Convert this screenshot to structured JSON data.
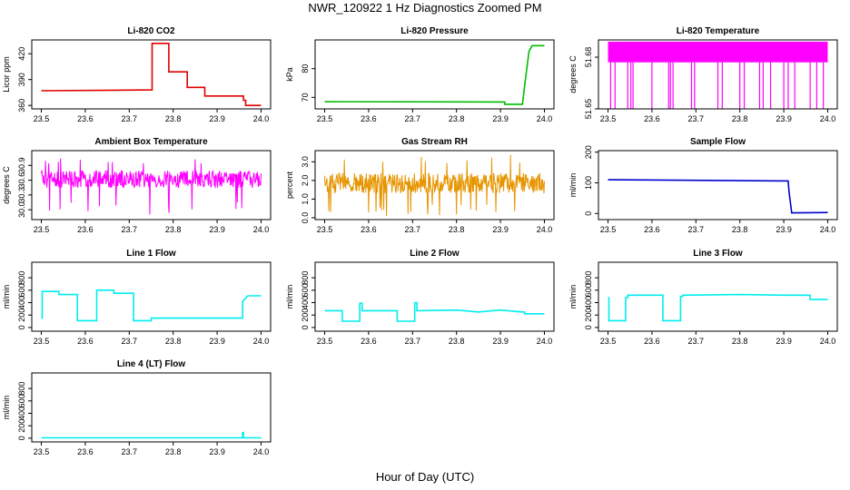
{
  "page": {
    "title": "NWR_120922  1 Hz Diagnostics Zoomed PM",
    "xlabel": "Hour of Day (UTC)"
  },
  "chart_data": [
    {
      "type": "line",
      "title": "Li-820 CO2",
      "xlabel": "",
      "ylabel": "Licor ppm",
      "xlim": [
        23.5,
        24.0
      ],
      "ylim": [
        356,
        436
      ],
      "xticks": [
        "23.5",
        "23.6",
        "23.7",
        "23.8",
        "23.9",
        "24.0"
      ],
      "yticks": [
        {
          "v": 360,
          "label": "360"
        },
        {
          "v": 390,
          "label": "390"
        },
        {
          "v": 420,
          "label": "420"
        }
      ],
      "color": "#e00000",
      "style": "steps",
      "series": [
        {
          "x": [
            23.5,
            23.752,
            23.752,
            23.79,
            23.79,
            23.832,
            23.832,
            23.872,
            23.872,
            23.96,
            23.96,
            23.965,
            23.965,
            24.0
          ],
          "y": [
            377,
            378,
            432,
            432,
            399,
            399,
            381,
            381,
            371,
            371,
            366,
            366,
            360,
            360
          ]
        }
      ]
    },
    {
      "type": "line",
      "title": "Li-820 Pressure",
      "xlabel": "",
      "ylabel": "kPa",
      "xlim": [
        23.5,
        24.0
      ],
      "ylim": [
        66,
        90
      ],
      "xticks": [
        "23.5",
        "23.6",
        "23.7",
        "23.8",
        "23.9",
        "24.0"
      ],
      "yticks": [
        {
          "v": 70,
          "label": "70"
        },
        {
          "v": 80,
          "label": "80"
        }
      ],
      "color": "#00bb00",
      "style": "steps",
      "series": [
        {
          "x": [
            23.5,
            23.91,
            23.91,
            23.95,
            23.955,
            23.965,
            23.972,
            24.0
          ],
          "y": [
            68.5,
            68.4,
            67.6,
            67.6,
            74,
            86,
            88,
            88
          ]
        }
      ]
    },
    {
      "type": "line",
      "title": "Li-820 Temperature",
      "xlabel": "",
      "ylabel": "degrees C",
      "xlim": [
        23.5,
        24.0
      ],
      "ylim": [
        51.65,
        51.69
      ],
      "xticks": [
        "23.5",
        "23.6",
        "23.7",
        "23.8",
        "23.9",
        "24.0"
      ],
      "yticks": [
        {
          "v": 51.65,
          "label": "51.65"
        },
        {
          "v": 51.68,
          "label": "51.68"
        }
      ],
      "color": "#ff00ff",
      "style": "band",
      "band": {
        "low": 51.677,
        "high": 51.689,
        "drop_to": 51.65,
        "drop_x": [
          23.506,
          23.516,
          23.545,
          23.552,
          23.557,
          23.6,
          23.638,
          23.642,
          23.648,
          23.69,
          23.697,
          23.75,
          23.76,
          23.8,
          23.81,
          23.845,
          23.853,
          23.87,
          23.9,
          23.91,
          23.925,
          23.96,
          23.975,
          23.99
        ]
      }
    },
    {
      "type": "line",
      "title": "Ambient Box Temperature",
      "xlabel": "",
      "ylabel": "degrees C",
      "xlim": [
        23.5,
        24.0
      ],
      "ylim": [
        29.8,
        31.2
      ],
      "xticks": [
        "23.5",
        "23.6",
        "23.7",
        "23.8",
        "23.9",
        "24.0"
      ],
      "yticks": [
        {
          "v": 30.0,
          "label": "30.0"
        },
        {
          "v": 30.3,
          "label": "30.3"
        },
        {
          "v": 30.6,
          "label": "30.6"
        },
        {
          "v": 30.9,
          "label": "30.9"
        }
      ],
      "color": "#ff00ff",
      "style": "noise",
      "noise": {
        "center": 30.62,
        "amp": 0.18,
        "min": 29.9,
        "max": 31.05,
        "n": 480
      }
    },
    {
      "type": "line",
      "title": "Gas Stream RH",
      "xlabel": "",
      "ylabel": "percent",
      "xlim": [
        23.5,
        24.0
      ],
      "ylim": [
        -0.1,
        3.6
      ],
      "xticks": [
        "23.5",
        "23.6",
        "23.7",
        "23.8",
        "23.9",
        "24.0"
      ],
      "yticks": [
        {
          "v": 0.0,
          "label": "0.0"
        },
        {
          "v": 1.0,
          "label": "1.0"
        },
        {
          "v": 2.0,
          "label": "2.0"
        },
        {
          "v": 3.0,
          "label": "3.0"
        }
      ],
      "color": "#e69500",
      "style": "noise",
      "noise": {
        "center": 1.85,
        "amp": 0.55,
        "min": 0.0,
        "max": 3.4,
        "n": 480
      }
    },
    {
      "type": "line",
      "title": "Sample Flow",
      "xlabel": "",
      "ylabel": "ml/min",
      "xlim": [
        23.5,
        24.0
      ],
      "ylim": [
        -20,
        205
      ],
      "xticks": [
        "23.5",
        "23.6",
        "23.7",
        "23.8",
        "23.9",
        "24.0"
      ],
      "yticks": [
        {
          "v": 0,
          "label": "0"
        },
        {
          "v": 100,
          "label": "100"
        },
        {
          "v": 200,
          "label": "200"
        }
      ],
      "color": "#0000cc",
      "style": "steps",
      "series": [
        {
          "x": [
            23.5,
            23.91,
            23.912,
            23.918,
            24.0
          ],
          "y": [
            110,
            106,
            70,
            2,
            3
          ]
        }
      ]
    },
    {
      "type": "line",
      "title": "Line 1 Flow",
      "xlabel": "",
      "ylabel": "ml/min",
      "xlim": [
        23.5,
        24.0
      ],
      "ylim": [
        -60,
        1050
      ],
      "xticks": [
        "23.5",
        "23.6",
        "23.7",
        "23.8",
        "23.9",
        "24.0"
      ],
      "yticks": [
        {
          "v": 0,
          "label": "0"
        },
        {
          "v": 200,
          "label": "200"
        },
        {
          "v": 400,
          "label": "400"
        },
        {
          "v": 600,
          "label": "600"
        },
        {
          "v": 800,
          "label": "800"
        }
      ],
      "color": "#00eeee",
      "style": "steps",
      "series": [
        {
          "x": [
            23.5,
            23.502,
            23.502,
            23.54,
            23.54,
            23.582,
            23.582,
            23.626,
            23.626,
            23.665,
            23.665,
            23.71,
            23.71,
            23.75,
            23.75,
            23.958,
            23.958,
            23.97,
            24.0
          ],
          "y": [
            150,
            150,
            580,
            580,
            530,
            530,
            110,
            110,
            600,
            600,
            550,
            550,
            110,
            110,
            150,
            150,
            420,
            510,
            510
          ]
        }
      ]
    },
    {
      "type": "line",
      "title": "Line 2 Flow",
      "xlabel": "",
      "ylabel": "ml/min",
      "xlim": [
        23.5,
        24.0
      ],
      "ylim": [
        -60,
        1050
      ],
      "xticks": [
        "23.5",
        "23.6",
        "23.7",
        "23.8",
        "23.9",
        "24.0"
      ],
      "yticks": [
        {
          "v": 0,
          "label": "0"
        },
        {
          "v": 200,
          "label": "200"
        },
        {
          "v": 400,
          "label": "400"
        },
        {
          "v": 600,
          "label": "600"
        },
        {
          "v": 800,
          "label": "800"
        }
      ],
      "color": "#00eeee",
      "style": "steps",
      "series": [
        {
          "x": [
            23.5,
            23.54,
            23.54,
            23.58,
            23.58,
            23.585,
            23.585,
            23.665,
            23.665,
            23.705,
            23.705,
            23.71,
            23.71,
            23.8,
            23.85,
            23.9,
            23.95,
            23.955,
            23.955,
            24.0
          ],
          "y": [
            270,
            270,
            100,
            100,
            390,
            390,
            270,
            270,
            100,
            100,
            400,
            400,
            270,
            280,
            250,
            280,
            250,
            250,
            220,
            220
          ]
        }
      ]
    },
    {
      "type": "line",
      "title": "Line 3 Flow",
      "xlabel": "",
      "ylabel": "ml/min",
      "xlim": [
        23.5,
        24.0
      ],
      "ylim": [
        -60,
        1050
      ],
      "xticks": [
        "23.5",
        "23.6",
        "23.7",
        "23.8",
        "23.9",
        "24.0"
      ],
      "yticks": [
        {
          "v": 0,
          "label": "0"
        },
        {
          "v": 200,
          "label": "200"
        },
        {
          "v": 400,
          "label": "400"
        },
        {
          "v": 600,
          "label": "600"
        },
        {
          "v": 800,
          "label": "800"
        }
      ],
      "color": "#00eeee",
      "style": "steps",
      "series": [
        {
          "x": [
            23.5,
            23.502,
            23.502,
            23.54,
            23.54,
            23.545,
            23.545,
            23.625,
            23.625,
            23.665,
            23.665,
            23.67,
            23.67,
            23.8,
            23.9,
            23.96,
            23.96,
            24.0
          ],
          "y": [
            480,
            480,
            110,
            110,
            480,
            480,
            520,
            520,
            110,
            110,
            500,
            500,
            520,
            530,
            520,
            520,
            450,
            450
          ]
        }
      ]
    },
    {
      "type": "line",
      "title": "Line 4 (LT) Flow",
      "xlabel": "",
      "ylabel": "ml/min",
      "xlim": [
        23.5,
        24.0
      ],
      "ylim": [
        -60,
        1050
      ],
      "xticks": [
        "23.5",
        "23.6",
        "23.7",
        "23.8",
        "23.9",
        "24.0"
      ],
      "yticks": [
        {
          "v": 0,
          "label": "0"
        },
        {
          "v": 200,
          "label": "200"
        },
        {
          "v": 400,
          "label": "400"
        },
        {
          "v": 600,
          "label": "600"
        },
        {
          "v": 800,
          "label": "800"
        }
      ],
      "color": "#00eeee",
      "style": "steps",
      "series": [
        {
          "x": [
            23.5,
            23.958,
            23.958,
            23.96,
            23.96,
            24.0
          ],
          "y": [
            5,
            5,
            90,
            90,
            5,
            5
          ]
        }
      ]
    }
  ]
}
